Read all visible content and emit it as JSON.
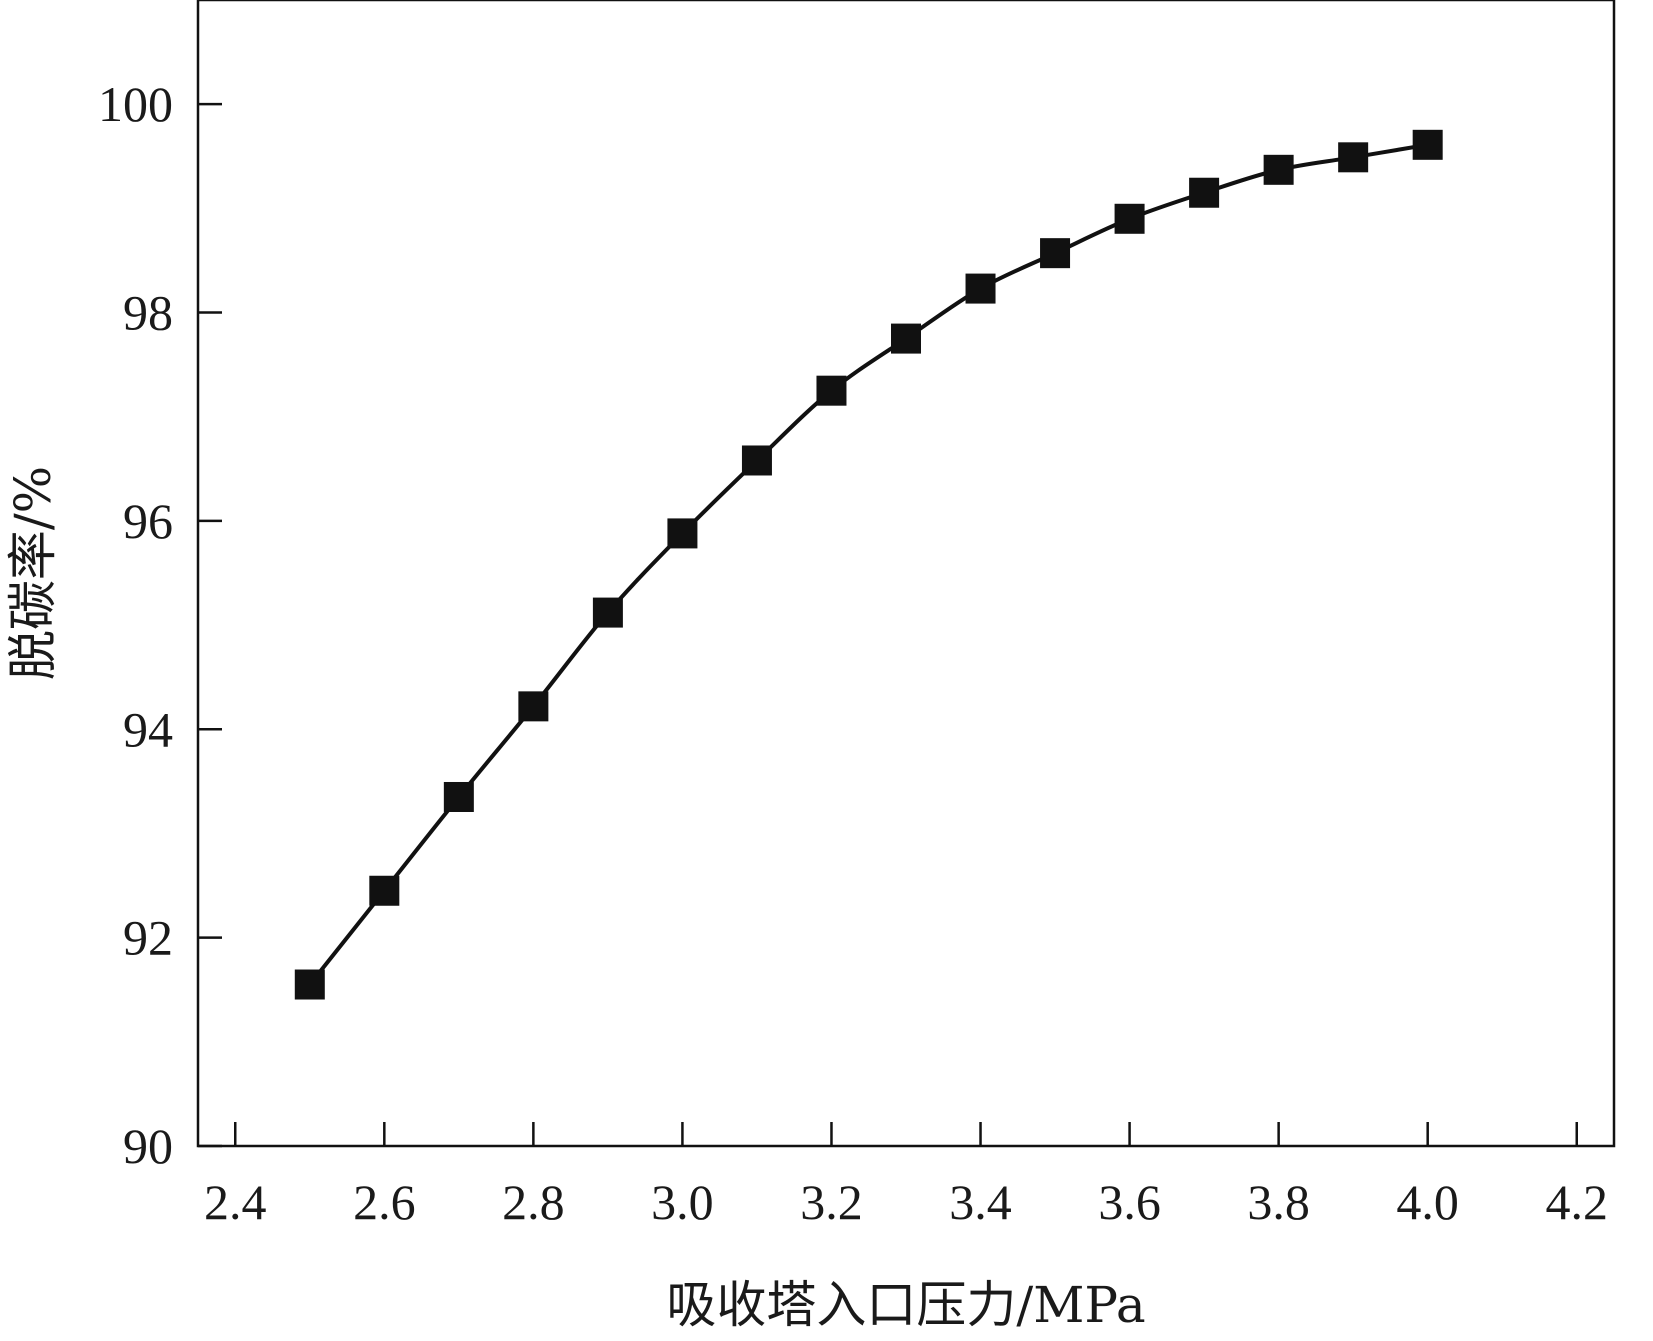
{
  "chart_data": {
    "type": "line",
    "xlabel": "吸收塔入口压力/MPa",
    "ylabel": "脱碳率/%",
    "xlim": [
      2.35,
      4.25
    ],
    "ylim": [
      90,
      101
    ],
    "xticks": [
      "2.4",
      "2.6",
      "2.8",
      "3.0",
      "3.2",
      "3.4",
      "3.6",
      "3.8",
      "4.0",
      "4.2"
    ],
    "yticks": [
      "90",
      "92",
      "94",
      "96",
      "98",
      "100"
    ],
    "grid": false,
    "marker": "square",
    "series": [
      {
        "x": [
          2.5,
          2.6,
          2.7,
          2.8,
          2.9,
          3.0,
          3.1,
          3.2,
          3.3,
          3.4,
          3.5,
          3.6,
          3.7,
          3.8,
          3.9,
          4.0
        ],
        "y": [
          91.55,
          92.45,
          93.35,
          94.22,
          95.12,
          95.88,
          96.58,
          97.25,
          97.75,
          98.23,
          98.57,
          98.9,
          99.15,
          99.37,
          99.49,
          99.61
        ]
      }
    ],
    "colors": {
      "line": "#111111",
      "marker": "#111111",
      "axis": "#111111"
    }
  }
}
